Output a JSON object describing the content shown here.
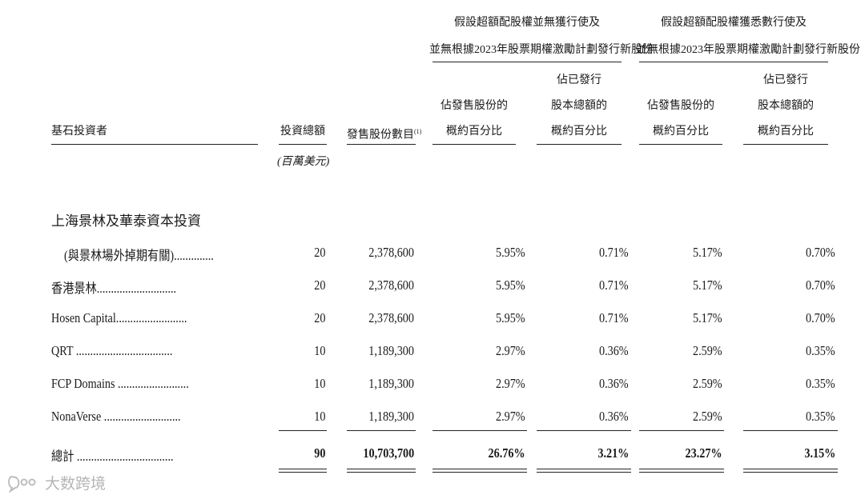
{
  "header": {
    "group1": [
      "假設超額配股權並無獲行使及",
      "並無根據2023年股票期權激勵計劃發行新股份"
    ],
    "group2": [
      "假設超額配股權獲悉數行使及",
      "並無根據2023年股票期權激勵計劃發行新股份"
    ],
    "col_investor": "基石投資者",
    "col_amount": "投資總額",
    "col_shares": "發售股份數目",
    "col_shares_note": "(1)",
    "col_pct_offer": [
      "佔發售股份的",
      "概約百分比"
    ],
    "col_pct_capital": [
      "佔已發行",
      "股本總額的",
      "概約百分比"
    ],
    "unit": "(百萬美元)"
  },
  "group_title": "上海景林及華泰資本投資",
  "rows": [
    {
      "name": "(與景林場外掉期有關)..............",
      "amount": "20",
      "shares": "2,378,600",
      "p1": "5.95%",
      "p2": "0.71%",
      "p3": "5.17%",
      "p4": "0.70%"
    },
    {
      "name": "香港景林............................",
      "amount": "20",
      "shares": "2,378,600",
      "p1": "5.95%",
      "p2": "0.71%",
      "p3": "5.17%",
      "p4": "0.70%"
    },
    {
      "name": "Hosen Capital.........................",
      "amount": "20",
      "shares": "2,378,600",
      "p1": "5.95%",
      "p2": "0.71%",
      "p3": "5.17%",
      "p4": "0.70%"
    },
    {
      "name": "QRT ..................................",
      "amount": "10",
      "shares": "1,189,300",
      "p1": "2.97%",
      "p2": "0.36%",
      "p3": "2.59%",
      "p4": "0.35%"
    },
    {
      "name": "FCP Domains .........................",
      "amount": "10",
      "shares": "1,189,300",
      "p1": "2.97%",
      "p2": "0.36%",
      "p3": "2.59%",
      "p4": "0.35%"
    },
    {
      "name": "NonaVerse ...........................",
      "amount": "10",
      "shares": "1,189,300",
      "p1": "2.97%",
      "p2": "0.36%",
      "p3": "2.59%",
      "p4": "0.35%"
    }
  ],
  "total": {
    "name": "總計 ..................................",
    "amount": "90",
    "shares": "10,703,700",
    "p1": "26.76%",
    "p2": "3.21%",
    "p3": "23.27%",
    "p4": "3.15%"
  },
  "watermark": {
    "icon": "chat-bubble-icon",
    "text": "大数跨境"
  }
}
